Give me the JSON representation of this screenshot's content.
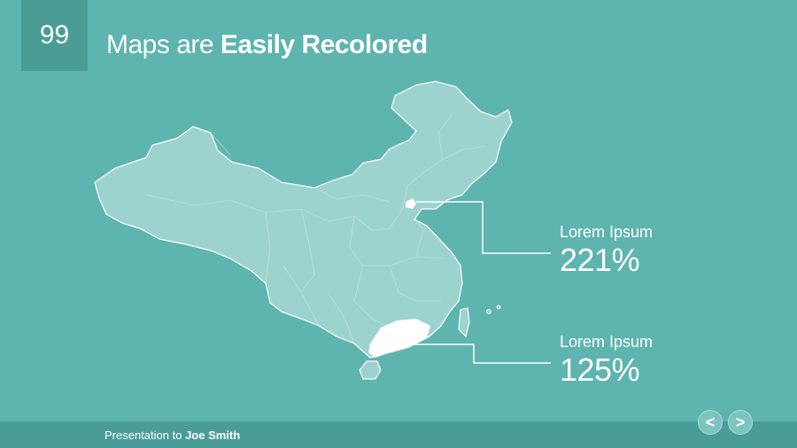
{
  "slide": {
    "number": "99",
    "title_regular": "Maps are ",
    "title_bold": "Easily Recolored"
  },
  "callouts": [
    {
      "label": "Lorem Ipsum",
      "value": "221%"
    },
    {
      "label": "Lorem Ipsum",
      "value": "125%"
    }
  ],
  "footer": {
    "prefix": "Presentation to ",
    "name": "Joe Smith"
  },
  "nav": {
    "prev_glyph": "<",
    "next_glyph": ">"
  },
  "colors": {
    "background": "#5eb4ae",
    "accent_dark": "#4a9c97",
    "map_fill": "#9dd3ce",
    "highlight": "#ffffff"
  }
}
